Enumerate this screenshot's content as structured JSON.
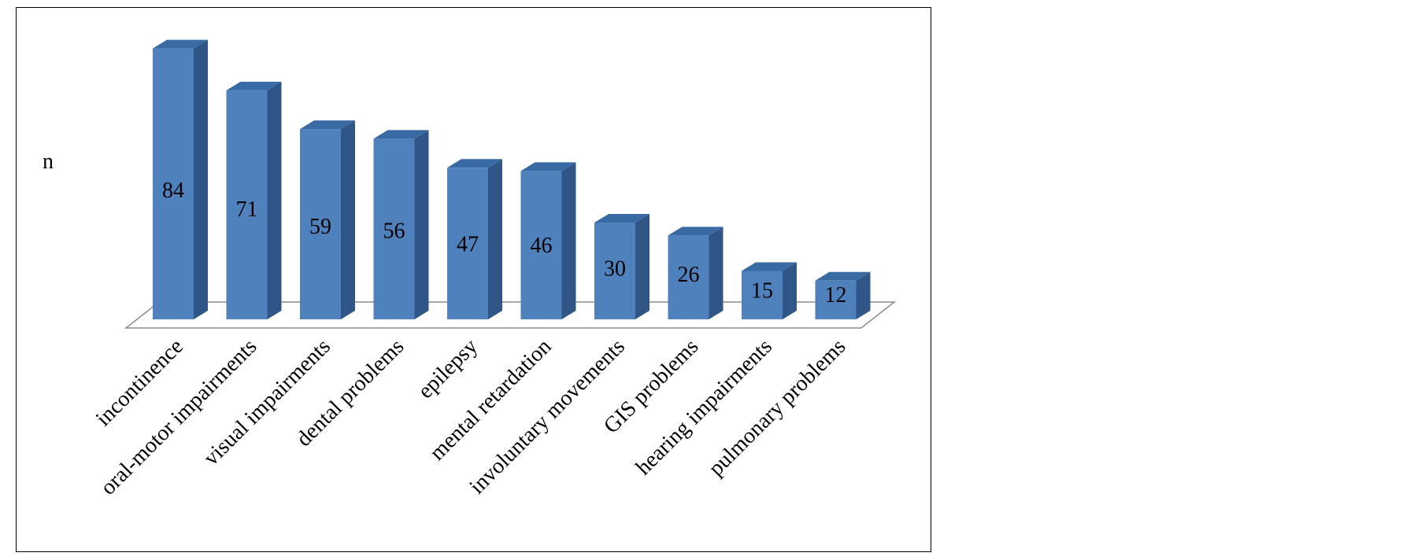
{
  "chart_data": {
    "type": "bar",
    "ylabel": "n",
    "categories": [
      "incontinence",
      "oral-motor impairments",
      "visual impairments",
      "dental problems",
      "epilepsy",
      "mental retardation",
      "involuntary movements",
      "GIS problems",
      "hearing impairments",
      "pulmonary problems"
    ],
    "values": [
      84,
      71,
      59,
      56,
      47,
      46,
      30,
      26,
      15,
      12
    ],
    "data_labels": [
      "84",
      "71",
      "59",
      "56",
      "47",
      "46",
      "30",
      "26",
      "15",
      "12"
    ],
    "ylim": [
      0,
      84
    ],
    "grid": false,
    "legend": "none",
    "colors": {
      "bar_front": "#4f81bd",
      "bar_top": "#3a6aa3",
      "bar_side": "#2f5686",
      "floor_stroke": "#8c8c8c"
    }
  }
}
